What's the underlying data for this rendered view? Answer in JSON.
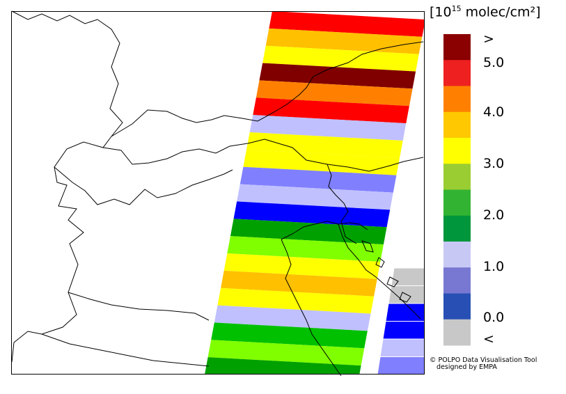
{
  "colorbar": {
    "unit_prefix": "[10",
    "unit_exponent": "15",
    "unit_suffix": " molec/cm²]",
    "bins": [
      {
        "color": "#8b0000"
      },
      {
        "color": "#ee2020"
      },
      {
        "color": "#ff8000"
      },
      {
        "color": "#ffc800"
      },
      {
        "color": "#ffff00"
      },
      {
        "color": "#9acd32"
      },
      {
        "color": "#32b432"
      },
      {
        "color": "#00963c"
      },
      {
        "color": "#c8c8f5"
      },
      {
        "color": "#7878d2"
      },
      {
        "color": "#2850b4"
      },
      {
        "color": "#c8c8c8"
      }
    ],
    "tick_labels": [
      ">",
      "5.0",
      "4.0",
      "3.0",
      "2.0",
      "1.0",
      "0.0",
      "<"
    ]
  },
  "swath": {
    "rows": [
      {
        "color": "#ff0000"
      },
      {
        "color": "#ffc000"
      },
      {
        "color": "#ffff00"
      },
      {
        "color": "#800000"
      },
      {
        "color": "#ff8000"
      },
      {
        "color": "#ff0000"
      },
      {
        "color": "#c0c0ff"
      },
      {
        "color": "#ffff00"
      },
      {
        "color": "#ffff00"
      },
      {
        "color": "#8080ff"
      },
      {
        "color": "#c0c0ff"
      },
      {
        "color": "#0000ff"
      },
      {
        "color": "#00a000"
      },
      {
        "color": "#80ff00"
      },
      {
        "color": "#ffff00"
      },
      {
        "color": "#ffc000"
      },
      {
        "color": "#ffff00"
      },
      {
        "color": "#c0c0ff"
      },
      {
        "color": "#00c000"
      },
      {
        "color": "#80ff00"
      },
      {
        "color": "#00a000"
      }
    ]
  },
  "east_cells": [
    {
      "color": "#c8c8c8"
    },
    {
      "color": "#c8c8c8"
    },
    {
      "color": "#0000ff"
    },
    {
      "color": "#0000ff"
    },
    {
      "color": "#c0c0ff"
    },
    {
      "color": "#8080ff"
    }
  ],
  "credit": {
    "line1": "© POLPO Data Visualisation Tool",
    "line2": "designed by EMPA"
  }
}
